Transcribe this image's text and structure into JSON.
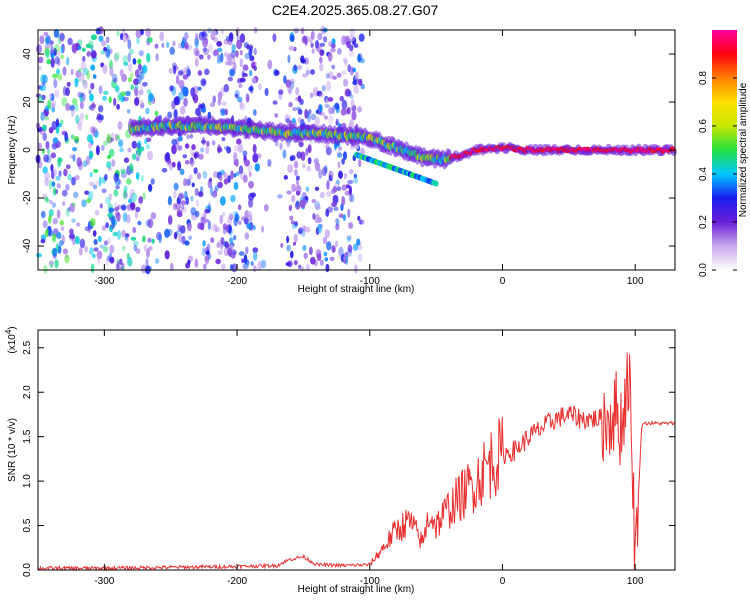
{
  "title": "C2E4.2025.365.08.27.G07",
  "chart_data": [
    {
      "type": "heatmap",
      "xlabel": "Height of straight line (km)",
      "ylabel": "Frequency (Hz)",
      "xlim": [
        -350,
        130
      ],
      "ylim": [
        -50,
        50
      ],
      "xticks": [
        -300,
        -200,
        -100,
        0,
        100
      ],
      "yticks": [
        -40,
        -20,
        0,
        20,
        40
      ],
      "ridge": {
        "x": [
          -280,
          -250,
          -220,
          -200,
          -180,
          -160,
          -140,
          -120,
          -100,
          -80,
          -60,
          -45,
          -30,
          -20,
          0,
          20,
          50,
          80,
          100,
          130
        ],
        "y": [
          9,
          10,
          10,
          9,
          8,
          7,
          7,
          6,
          5,
          1,
          -3,
          -4,
          -2,
          0,
          1,
          0,
          0,
          0,
          0,
          0
        ]
      },
      "colorbar": {
        "label": "Normalized spectral amplitude",
        "range": [
          0,
          1
        ],
        "ticks": [
          "0.0",
          "0.2",
          "0.4",
          "0.6",
          "0.8"
        ],
        "stops": [
          "#ffffff",
          "#c9a8ee",
          "#6a1fd8",
          "#1a1cf0",
          "#00c8ff",
          "#22e040",
          "#c8e800",
          "#ffe000",
          "#ff8000",
          "#ff0010",
          "#ff00a0"
        ]
      }
    },
    {
      "type": "line",
      "xlabel": "Height of straight line (km)",
      "ylabel": "SNR (10 * v/v)",
      "multiplier": "(x10",
      "exponent": "4",
      "xlim": [
        -350,
        130
      ],
      "ylim": [
        0,
        2.7
      ],
      "xticks": [
        -300,
        -200,
        -100,
        0,
        100
      ],
      "yticks": [
        "0.0",
        "0.5",
        "1.0",
        "1.5",
        "2.0",
        "2.5"
      ],
      "color": "#e83030",
      "series": {
        "name": "SNR",
        "x": [
          -350,
          -300,
          -250,
          -200,
          -170,
          -160,
          -150,
          -140,
          -120,
          -100,
          -90,
          -80,
          -70,
          -60,
          -55,
          -50,
          -40,
          -30,
          -20,
          -10,
          0,
          10,
          20,
          30,
          40,
          50,
          60,
          70,
          80,
          85,
          90,
          95,
          98,
          100,
          105,
          110,
          130
        ],
        "values": [
          0.02,
          0.02,
          0.03,
          0.04,
          0.05,
          0.12,
          0.15,
          0.06,
          0.05,
          0.06,
          0.25,
          0.45,
          0.55,
          0.3,
          0.65,
          0.5,
          0.7,
          0.85,
          1.0,
          1.2,
          1.3,
          1.35,
          1.5,
          1.6,
          1.7,
          1.75,
          1.7,
          1.7,
          1.7,
          1.8,
          1.6,
          2.3,
          1.2,
          0.1,
          1.65,
          1.65,
          1.65
        ]
      }
    }
  ]
}
